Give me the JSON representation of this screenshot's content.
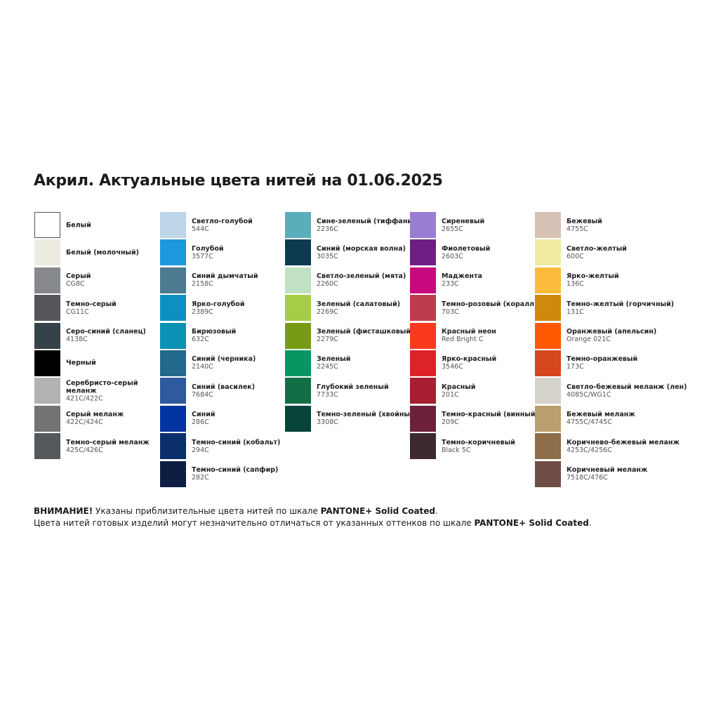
{
  "title": "Акрил. Актуальные цвета нитей на 01.06.2025",
  "columns": [
    [
      {
        "name": "Белый",
        "code": "",
        "color": "#ffffff"
      },
      {
        "name": "Белый (молочный)",
        "code": "",
        "color": "#ecebe0"
      },
      {
        "name": "Серый",
        "code": "CG8C",
        "color": "#87888c"
      },
      {
        "name": "Темно-серый",
        "code": "CG11C",
        "color": "#55565a"
      },
      {
        "name": "Серо-синий (сланец)",
        "code": "4138C",
        "color": "#36424a"
      },
      {
        "name": "Черный",
        "code": "",
        "color": "#000000"
      },
      {
        "name": "Серебристо-серый меланж",
        "name2": "меланж",
        "code": "421C/422C",
        "color": "#b1b2b1"
      },
      {
        "name": "Серый меланж",
        "code": "422C/424C",
        "color": "#727372"
      },
      {
        "name": "Темно-серый меланж",
        "code": "425C/426C",
        "color": "#53585b"
      }
    ],
    [
      {
        "name": "Светло-голубой",
        "code": "544C",
        "color": "#bed5e7"
      },
      {
        "name": "Голубой",
        "code": "3577C",
        "color": "#1d97dd"
      },
      {
        "name": "Синий дымчатый",
        "code": "2158C",
        "color": "#4d7a90"
      },
      {
        "name": "Ярко-голубой",
        "code": "2389C",
        "color": "#0e8fc4"
      },
      {
        "name": "Бирюзовый",
        "code": "632C",
        "color": "#0b91b3"
      },
      {
        "name": "Синий (черника)",
        "code": "2140C",
        "color": "#216a8c"
      },
      {
        "name": "Синий (василек)",
        "code": "7684C",
        "color": "#2f5a9e"
      },
      {
        "name": "Синий",
        "code": "286C",
        "color": "#0433a3"
      },
      {
        "name": "Темно-синий (кобальт)",
        "code": "294C",
        "color": "#0a2f6b"
      },
      {
        "name": "Темно-синий (сапфир)",
        "code": "282C",
        "color": "#0e1d42"
      }
    ],
    [
      {
        "name": "Сине-зеленый (тиффани)",
        "code": "2236C",
        "color": "#5aaebb"
      },
      {
        "name": "Синий (морская волна)",
        "code": "3035C",
        "color": "#0d3a51"
      },
      {
        "name": "Светло-зеленый (мята)",
        "code": "2260C",
        "color": "#c1e1c3"
      },
      {
        "name": "Зеленый (салатовый)",
        "code": "2269C",
        "color": "#a6cd45"
      },
      {
        "name": "Зеленый (фисташковый)",
        "code": "2279C",
        "color": "#789b16"
      },
      {
        "name": "Зеленый",
        "code": "2245C",
        "color": "#069661"
      },
      {
        "name": "Глубокий зеленый",
        "code": "7733C",
        "color": "#136e45"
      },
      {
        "name": "Темно-зеленый (хвойный)",
        "code": "3308C",
        "color": "#07443a"
      }
    ],
    [
      {
        "name": "Сиреневый",
        "code": "2655C",
        "color": "#997dd4"
      },
      {
        "name": "Фиолетовый",
        "code": "2603C",
        "color": "#6e1f86"
      },
      {
        "name": "Маджента",
        "code": "233C",
        "color": "#c8097f"
      },
      {
        "name": "Темно-розовый (коралл)",
        "code": "703C",
        "color": "#bd3c4b"
      },
      {
        "name": "Красный неон",
        "code": "Red Bright C",
        "color": "#fa3a1c"
      },
      {
        "name": "Ярко-красный",
        "code": "3546C",
        "color": "#dd2328"
      },
      {
        "name": "Красный",
        "code": "201C",
        "color": "#a71e33"
      },
      {
        "name": "Темно-красный (винный)",
        "code": "209C",
        "color": "#6e203a"
      },
      {
        "name": "Темно-коричневый",
        "code": "Black 5C",
        "color": "#3d2a2e"
      }
    ],
    [
      {
        "name": "Бежевый",
        "code": "4755C",
        "color": "#d8c1b5"
      },
      {
        "name": "Светло-желтый",
        "code": "600C",
        "color": "#f0eb9f"
      },
      {
        "name": "Ярко-желтый",
        "code": "136C",
        "color": "#fbbb3b"
      },
      {
        "name": "Темно-желтый (горчичный)",
        "code": "131C",
        "color": "#cf8a0b"
      },
      {
        "name": "Оранжевый (апельсин)",
        "code": "Orange 021C",
        "color": "#fe5a04"
      },
      {
        "name": "Темно-оранжевый",
        "code": "173C",
        "color": "#d6461f"
      },
      {
        "name": "Светло-бежевый меланж (лен)",
        "code": "4085C/WG1C",
        "color": "#d5d2cb"
      },
      {
        "name": "Бежевый меланж",
        "code": "4755C/4745C",
        "color": "#bb9e6d"
      },
      {
        "name": "Коричнево-бежевый меланж",
        "code": "4253C/4256C",
        "color": "#8f6e4b"
      },
      {
        "name": "Коричневый меланж",
        "code": "7518C/476C",
        "color": "#6d4d45"
      }
    ]
  ],
  "note": {
    "line1_bold": "ВНИМАНИЕ!",
    "line1": " Указаны приблизительные цвета нитей по шкале ",
    "line1_end": "PANTONE+ Solid Coated",
    "line1_dot": ".",
    "line2": "Цвета нитей готовых изделий могут незначительно отличаться от указанных оттенков по шкале ",
    "line2_end": "PANTONE+ Solid Coated",
    "line2_dot": "."
  }
}
